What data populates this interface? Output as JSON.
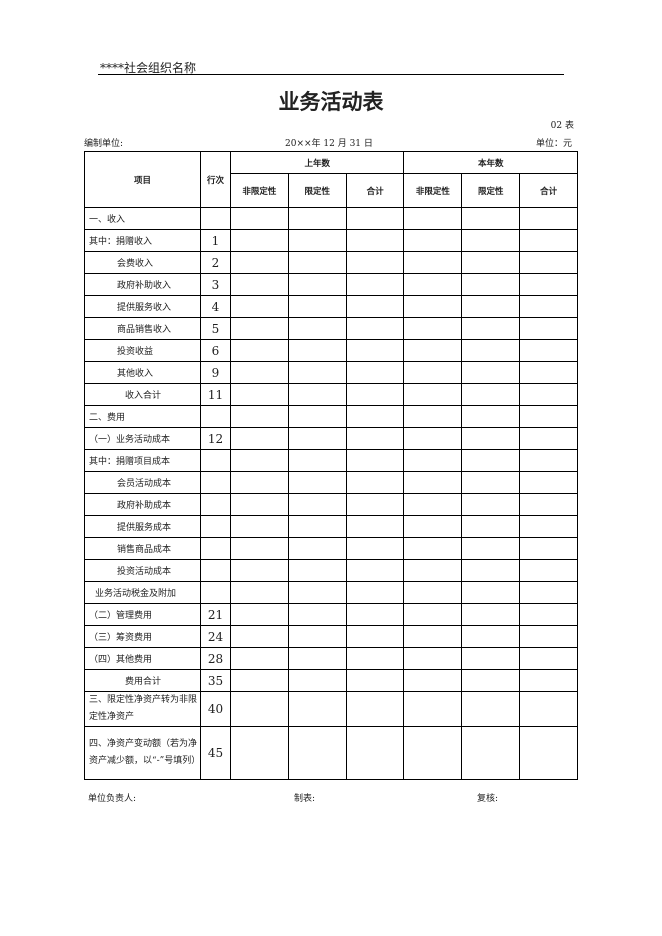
{
  "header": {
    "org_name": "****社会组织名称",
    "title": "业务活动表",
    "form_no": "02 表",
    "prepared_by": "编制单位:",
    "date": "20××年 12 月 31 日",
    "unit": "单位：元"
  },
  "columns": {
    "item": "项目",
    "line_no": "行次",
    "prior_year": "上年数",
    "current_year": "本年数",
    "unrestricted": "非限定性",
    "restricted": "限定性",
    "total": "合计"
  },
  "rows": [
    {
      "label": "一、收入",
      "no": "",
      "indent": 0
    },
    {
      "label": "其中：捐赠收入",
      "no": "1",
      "indent": 0
    },
    {
      "label": "会费收入",
      "no": "2",
      "indent": 1
    },
    {
      "label": "政府补助收入",
      "no": "3",
      "indent": 1
    },
    {
      "label": "提供服务收入",
      "no": "4",
      "indent": 1
    },
    {
      "label": "商品销售收入",
      "no": "5",
      "indent": 1
    },
    {
      "label": "投资收益",
      "no": "6",
      "indent": 1
    },
    {
      "label": "其他收入",
      "no": "9",
      "indent": 1
    },
    {
      "label": "收入合计",
      "no": "11",
      "indent": 2
    },
    {
      "label": "二、费用",
      "no": "",
      "indent": 0
    },
    {
      "label": "（一）业务活动成本",
      "no": "12",
      "indent": 0
    },
    {
      "label": "其中：捐赠项目成本",
      "no": "",
      "indent": 0
    },
    {
      "label": "会员活动成本",
      "no": "",
      "indent": 1
    },
    {
      "label": "政府补助成本",
      "no": "",
      "indent": 1
    },
    {
      "label": "提供服务成本",
      "no": "",
      "indent": 1
    },
    {
      "label": "销售商品成本",
      "no": "",
      "indent": 1
    },
    {
      "label": "投资活动成本",
      "no": "",
      "indent": 1
    },
    {
      "label": "业务活动税金及附加",
      "no": "",
      "indent": 3
    },
    {
      "label": "（二）管理费用",
      "no": "21",
      "indent": 0
    },
    {
      "label": "（三）筹资费用",
      "no": "24",
      "indent": 0
    },
    {
      "label": "（四）其他费用",
      "no": "28",
      "indent": 0
    },
    {
      "label": "费用合计",
      "no": "35",
      "indent": 2
    },
    {
      "label": "三、限定性净资产转为非限定性净资产",
      "no": "40",
      "indent": 0,
      "tall": 35
    },
    {
      "label": "四、净资产变动额（若为净资产减少额，以“-”号填列）",
      "no": "45",
      "indent": 0,
      "tall": 53
    }
  ],
  "footer": {
    "head": "单位负责人:",
    "maker": "制表:",
    "reviewer": "复核:"
  }
}
